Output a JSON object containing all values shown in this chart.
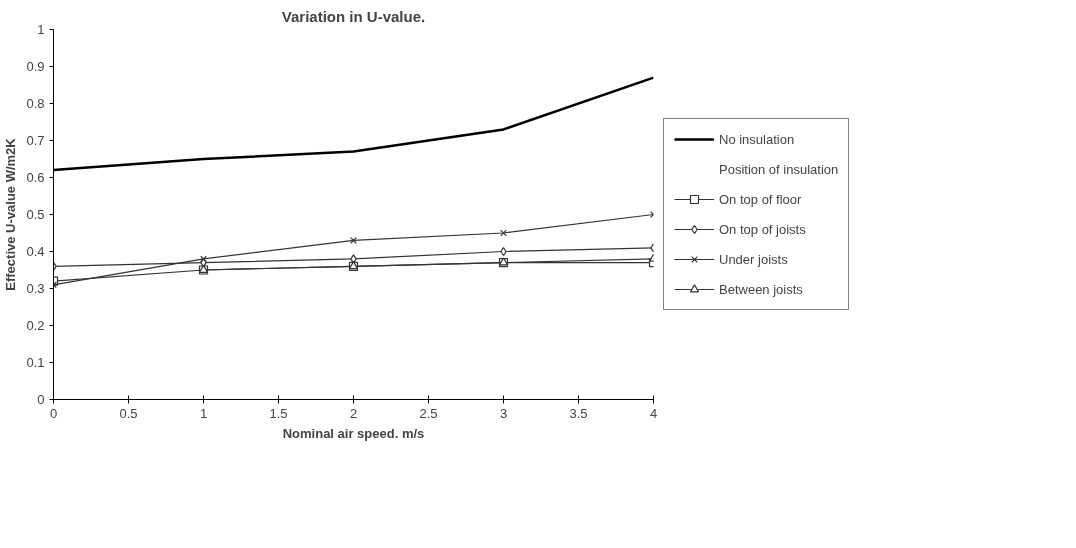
{
  "chart_data": {
    "type": "line",
    "title": "Variation in U-value.",
    "xlabel": "Nominal air speed. m/s",
    "ylabel": "Effective U-value W/m2K",
    "legend_title": "Position of insulation",
    "x": [
      0,
      1,
      2,
      3,
      4
    ],
    "series": [
      {
        "name": "No insulation",
        "color": "#000000",
        "marker": "none",
        "values": [
          0.62,
          0.65,
          0.67,
          0.73,
          0.87
        ]
      },
      {
        "name": "On top of floor",
        "color": "#333333",
        "marker": "square",
        "values": [
          0.32,
          0.35,
          0.36,
          0.37,
          0.37
        ]
      },
      {
        "name": "On top of joists",
        "color": "#333333",
        "marker": "diamond",
        "values": [
          0.36,
          0.37,
          0.38,
          0.4,
          0.41
        ]
      },
      {
        "name": "Under joists",
        "color": "#333333",
        "marker": "cross",
        "values": [
          0.31,
          0.38,
          0.43,
          0.45,
          0.5
        ]
      },
      {
        "name": "Between joists",
        "color": "#333333",
        "marker": "triangle",
        "values": [
          null,
          0.35,
          0.36,
          0.37,
          0.38
        ]
      }
    ],
    "xlim": [
      0,
      4
    ],
    "xticks": [
      0,
      0.5,
      1,
      1.5,
      2,
      2.5,
      3,
      3.5,
      4
    ],
    "ylim": [
      0,
      1
    ],
    "yticks": [
      0,
      0.1,
      0.2,
      0.3,
      0.4,
      0.5,
      0.6,
      0.7,
      0.8,
      0.9,
      1
    ],
    "grid": false,
    "legend": "right"
  }
}
